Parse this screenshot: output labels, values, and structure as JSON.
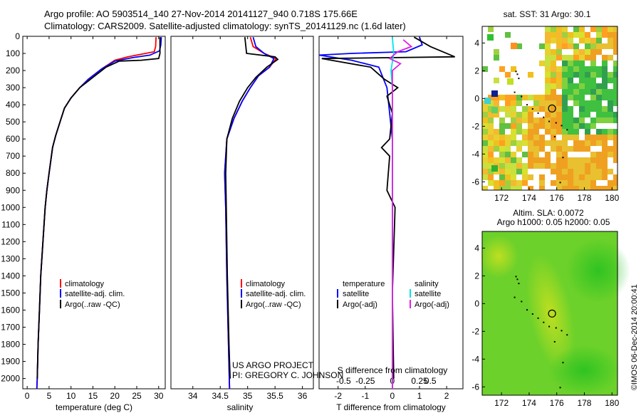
{
  "header": {
    "line1": "Argo profile: AO 5903514_140 27-Nov-2014 20141127_940 0.718S 175.66E",
    "line2": "Climatology: CARS2009. Satellite-adjusted climatology: synTS_20141129.nc (1.6d later)"
  },
  "credit": {
    "line1": "US ARGO PROJECT",
    "line2": "PI: GREGORY C. JOHNSON"
  },
  "watermark": "©IMOS 06-Dec-2014 20:00:41",
  "colors": {
    "climatology": "#ff0000",
    "satellite": "#0000ff",
    "argo": "#000000",
    "salinity_sat": "#00e5e5",
    "salinity_argo": "#e020e0"
  },
  "chart_data": [
    {
      "type": "line",
      "id": "temperature",
      "xlabel": "temperature (deg C)",
      "ylabel": "",
      "xlim": [
        -1,
        31.5
      ],
      "ylim": [
        2060,
        0
      ],
      "xticks": [
        0,
        5,
        10,
        15,
        20,
        25,
        30
      ],
      "yticks": [
        0,
        100,
        200,
        300,
        400,
        500,
        600,
        700,
        800,
        900,
        1000,
        1100,
        1200,
        1300,
        1400,
        1500,
        1600,
        1700,
        1800,
        1900,
        2000
      ],
      "legend": [
        "climatology",
        "satellite-adj. clim.",
        "Argo(..raw -QC)"
      ],
      "series": [
        {
          "name": "climatology",
          "color": "#ff0000",
          "points": [
            [
              29.4,
              5
            ],
            [
              29.3,
              60
            ],
            [
              29,
              90
            ],
            [
              27,
              100
            ],
            [
              23,
              120
            ],
            [
              20,
              140
            ],
            [
              17,
              190
            ],
            [
              14,
              250
            ],
            [
              12,
              300
            ],
            [
              10,
              360
            ],
            [
              8.5,
              420
            ],
            [
              7.5,
              500
            ],
            [
              6.5,
              580
            ],
            [
              5.8,
              650
            ],
            [
              5,
              800
            ],
            [
              4.5,
              900
            ],
            [
              4.1,
              1000
            ],
            [
              3.6,
              1200
            ],
            [
              3.1,
              1400
            ],
            [
              2.8,
              1600
            ],
            [
              2.5,
              1800
            ],
            [
              2.3,
              2000
            ],
            [
              2.2,
              2060
            ]
          ]
        },
        {
          "name": "satellite-adj. clim.",
          "color": "#0000ff",
          "points": [
            [
              30.6,
              5
            ],
            [
              30.5,
              50
            ],
            [
              30.2,
              85
            ],
            [
              28,
              110
            ],
            [
              24,
              125
            ],
            [
              20,
              145
            ],
            [
              17,
              190
            ],
            [
              14,
              250
            ],
            [
              12,
              300
            ],
            [
              10,
              360
            ],
            [
              8.5,
              420
            ],
            [
              7.5,
              500
            ],
            [
              6.5,
              580
            ],
            [
              5.8,
              650
            ],
            [
              5,
              800
            ],
            [
              4.5,
              900
            ],
            [
              4.1,
              1000
            ],
            [
              3.6,
              1200
            ],
            [
              3.1,
              1400
            ],
            [
              2.8,
              1600
            ],
            [
              2.5,
              1800
            ],
            [
              2.3,
              2000
            ],
            [
              2.2,
              2060
            ]
          ]
        },
        {
          "name": "Argo(..raw -QC)",
          "color": "#000000",
          "points": [
            [
              30.3,
              5
            ],
            [
              30.3,
              100
            ],
            [
              30,
              130
            ],
            [
              26,
              140
            ],
            [
              21,
              145
            ],
            [
              18,
              180
            ],
            [
              14,
              260
            ],
            [
              12,
              300
            ],
            [
              10,
              360
            ],
            [
              8.5,
              420
            ],
            [
              7.5,
              500
            ],
            [
              6.5,
              580
            ],
            [
              5.8,
              650
            ],
            [
              5,
              800
            ],
            [
              4.5,
              900
            ],
            [
              4.1,
              1000
            ],
            [
              3.6,
              1200
            ],
            [
              3.1,
              1400
            ],
            [
              2.8,
              1600
            ],
            [
              2.5,
              1800
            ],
            [
              2.3,
              2000
            ]
          ]
        }
      ]
    },
    {
      "type": "line",
      "id": "salinity",
      "xlabel": "salinity",
      "xlim": [
        33.6,
        36.2
      ],
      "ylim": [
        2060,
        0
      ],
      "xticks": [
        34,
        34.5,
        35,
        35.5,
        36
      ],
      "legend": [
        "climatology",
        "satellite-adj. clim.",
        "Argo(..raw -QC)"
      ],
      "series": [
        {
          "name": "climatology",
          "color": "#ff0000",
          "points": [
            [
              35.05,
              5
            ],
            [
              35.1,
              60
            ],
            [
              35.3,
              100
            ],
            [
              35.52,
              130
            ],
            [
              35.4,
              180
            ],
            [
              35.2,
              230
            ],
            [
              35.05,
              300
            ],
            [
              34.9,
              380
            ],
            [
              34.75,
              480
            ],
            [
              34.62,
              600
            ],
            [
              34.58,
              800
            ],
            [
              34.6,
              1000
            ],
            [
              34.62,
              1400
            ],
            [
              34.65,
              1800
            ],
            [
              34.67,
              2060
            ]
          ]
        },
        {
          "name": "satellite-adj. clim.",
          "color": "#0000ff",
          "points": [
            [
              35.1,
              5
            ],
            [
              35.15,
              60
            ],
            [
              35.3,
              100
            ],
            [
              35.48,
              130
            ],
            [
              35.4,
              180
            ],
            [
              35.2,
              230
            ],
            [
              35.05,
              300
            ],
            [
              34.9,
              380
            ],
            [
              34.75,
              480
            ],
            [
              34.62,
              600
            ],
            [
              34.58,
              800
            ],
            [
              34.6,
              1000
            ],
            [
              34.62,
              1400
            ],
            [
              34.65,
              1800
            ],
            [
              34.67,
              2060
            ]
          ]
        },
        {
          "name": "Argo(..raw -QC)",
          "color": "#000000",
          "points": [
            [
              34.95,
              5
            ],
            [
              34.98,
              100
            ],
            [
              35.5,
              120
            ],
            [
              35.55,
              135
            ],
            [
              35.35,
              180
            ],
            [
              35.15,
              240
            ],
            [
              35.0,
              300
            ],
            [
              34.85,
              380
            ],
            [
              34.72,
              480
            ],
            [
              34.62,
              600
            ],
            [
              34.6,
              800
            ],
            [
              34.61,
              1000
            ],
            [
              34.63,
              1400
            ],
            [
              34.66,
              1800
            ],
            [
              34.68,
              2000
            ]
          ]
        }
      ]
    },
    {
      "type": "line",
      "id": "difference",
      "xlabel": "T difference from climatology",
      "x2label": "S difference from climatology",
      "xlim": [
        -2.7,
        2.6
      ],
      "ylim": [
        2060,
        0
      ],
      "xticks": [
        -2,
        -1,
        0,
        1,
        2
      ],
      "x2ticks": [
        "-0.5",
        "-0.25",
        "0",
        "0.25",
        "0.5"
      ],
      "legend_title_t": "temperature",
      "legend_title_s": "salinity",
      "legend_t": [
        "satellite",
        "Argo(-adj)"
      ],
      "legend_s": [
        "satellite",
        "Argo(-adj)"
      ],
      "series": [
        {
          "name": "T satellite",
          "color": "#0000ff",
          "points": [
            [
              1.0,
              5
            ],
            [
              1.1,
              50
            ],
            [
              0.5,
              90
            ],
            [
              -1.5,
              100
            ],
            [
              -2.7,
              110
            ],
            [
              -1.5,
              140
            ],
            [
              -0.5,
              180
            ],
            [
              -0.2,
              300
            ],
            [
              0,
              600
            ],
            [
              0,
              2060
            ]
          ]
        },
        {
          "name": "T Argo(-adj)",
          "color": "#000000",
          "points": [
            [
              0.8,
              5
            ],
            [
              1.4,
              60
            ],
            [
              2.3,
              120
            ],
            [
              -2.6,
              130
            ],
            [
              -0.8,
              180
            ],
            [
              -0.3,
              250
            ],
            [
              0.2,
              300
            ],
            [
              -0.2,
              350
            ],
            [
              0,
              450
            ],
            [
              -0.1,
              600
            ],
            [
              -0.4,
              650
            ],
            [
              -0.1,
              700
            ],
            [
              -0.2,
              900
            ],
            [
              0.1,
              1000
            ],
            [
              0,
              1500
            ],
            [
              0.05,
              2000
            ]
          ]
        },
        {
          "name": "S satellite",
          "color": "#00e5e5",
          "points": [
            [
              0,
              5
            ],
            [
              0.05,
              100
            ],
            [
              -0.05,
              200
            ],
            [
              0,
              300
            ],
            [
              0,
              2060
            ]
          ]
        },
        {
          "name": "S Argo(-adj)",
          "color": "#e020e0",
          "points": [
            [
              0.4,
              20
            ],
            [
              0.7,
              60
            ],
            [
              0.2,
              90
            ],
            [
              -0.1,
              130
            ],
            [
              0.3,
              160
            ],
            [
              0,
              200
            ],
            [
              0,
              300
            ],
            [
              0,
              2060
            ]
          ]
        }
      ]
    },
    {
      "type": "heatmap",
      "id": "sst_map",
      "title": "sat. SST: 31  Argo: 30.1",
      "xlim": [
        170.6,
        180.4
      ],
      "ylim": [
        -6.6,
        5.2
      ],
      "xticks": [
        172,
        174,
        176,
        178,
        180
      ],
      "yticks": [
        -6,
        -4,
        -2,
        0,
        2,
        4
      ],
      "marker": [
        175.66,
        -0.718
      ]
    },
    {
      "type": "heatmap",
      "id": "sla_map",
      "title_line1": "Altim. SLA: 0.0072",
      "title_line2": "Argo h1000: 0.05 h2000: 0.05",
      "xlim": [
        170.6,
        180.4
      ],
      "ylim": [
        -6.6,
        5.2
      ],
      "xticks": [
        172,
        174,
        176,
        178,
        180
      ],
      "yticks": [
        -6,
        -4,
        -2,
        0,
        2,
        4
      ],
      "marker": [
        175.66,
        -0.718
      ]
    }
  ]
}
